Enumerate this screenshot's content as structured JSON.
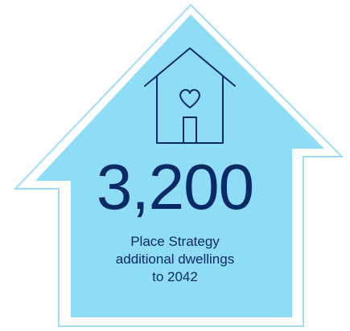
{
  "infographic": {
    "value": "3,200",
    "caption_lines": [
      "Place Strategy",
      "additional dwellings",
      "to 2042"
    ]
  },
  "icons": {
    "main_icon": "house-heart-icon"
  },
  "colors": {
    "fill": "#8fdcf7",
    "outline": "#9fdcf6",
    "text": "#0a2a66"
  }
}
